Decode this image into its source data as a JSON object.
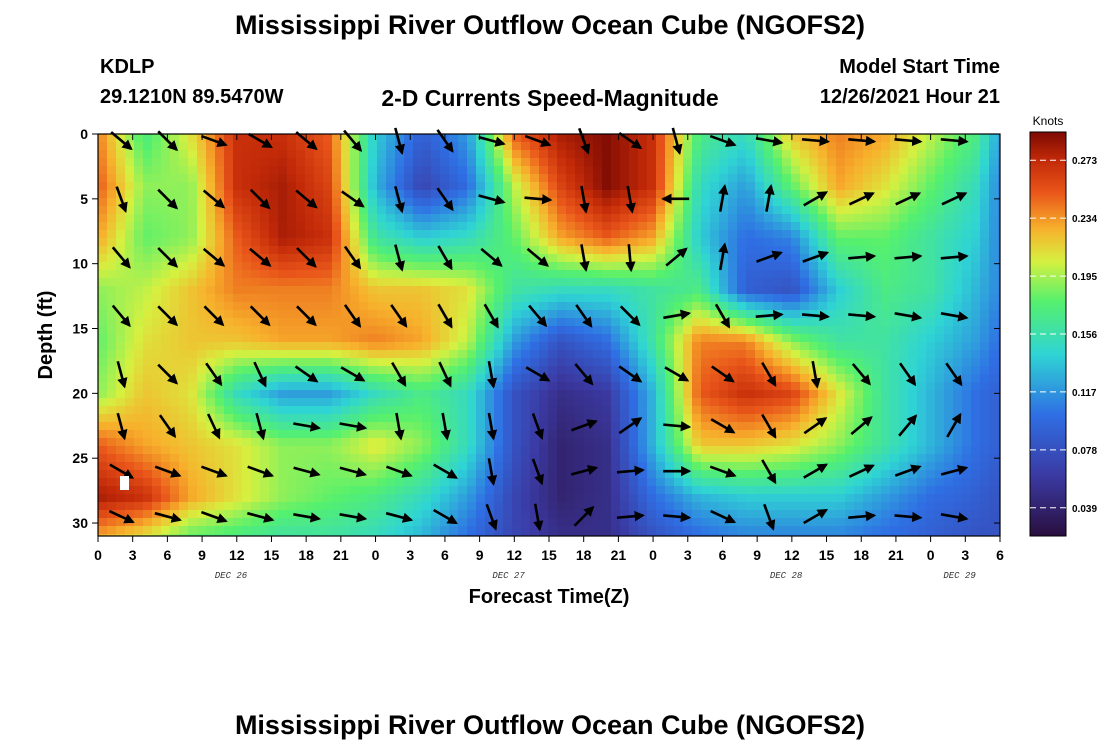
{
  "header": {
    "title": "Mississippi River Outflow Ocean Cube (NGOFS2)",
    "station": "KDLP",
    "coords": "29.1210N  89.5470W",
    "subtitle": "2-D Currents Speed-Magnitude",
    "model_start_label": "Model Start Time",
    "model_start_value": "12/26/2021 Hour 21"
  },
  "footer_title": "Mississippi River Outflow Ocean Cube (NGOFS2)",
  "chart_data": {
    "type": "heatmap",
    "xlabel": "Forecast Time(Z)",
    "ylabel": "Depth (ft)",
    "x_tick_labels": [
      "0",
      "3",
      "6",
      "9",
      "12",
      "15",
      "18",
      "21",
      "0",
      "3",
      "6",
      "9",
      "12",
      "15",
      "18",
      "21",
      "0",
      "3",
      "6",
      "9",
      "12",
      "15",
      "18",
      "21",
      "0",
      "3",
      "6"
    ],
    "x_hours": [
      0,
      3,
      6,
      9,
      12,
      15,
      18,
      21,
      24,
      27,
      30,
      33,
      36,
      39,
      42,
      45,
      48,
      51,
      54,
      57,
      60,
      63,
      66,
      69,
      72,
      75,
      78
    ],
    "xlim_hours": [
      0,
      78
    ],
    "day_labels": [
      {
        "text": "DEC 26",
        "hour": 11.5
      },
      {
        "text": "DEC 27",
        "hour": 35.5
      },
      {
        "text": "DEC 28",
        "hour": 59.5
      },
      {
        "text": "DEC 29",
        "hour": 74.5
      }
    ],
    "y_tick_labels": [
      "0",
      "5",
      "10",
      "15",
      "20",
      "25",
      "30"
    ],
    "y_ticks": [
      0,
      5,
      10,
      15,
      20,
      25,
      30
    ],
    "ylim": [
      0,
      31
    ],
    "colorbar": {
      "unit_label": "Knots",
      "ticks": [
        "0.273",
        "0.234",
        "0.195",
        "0.156",
        "0.117",
        "0.078",
        "0.039"
      ],
      "tick_values": [
        0.273,
        0.234,
        0.195,
        0.156,
        0.117,
        0.078,
        0.039
      ],
      "range": [
        0.02,
        0.292
      ]
    },
    "speed_field": {
      "description_hours": [
        0,
        4,
        8,
        12,
        16,
        20,
        24,
        28,
        32,
        36,
        40,
        44,
        48,
        52,
        56,
        60,
        64,
        68,
        72,
        76,
        78
      ],
      "depths_ft": [
        0,
        4,
        8,
        12,
        16,
        20,
        24,
        28,
        31
      ],
      "values_knots": [
        [
          0.24,
          0.17,
          0.21,
          0.27,
          0.27,
          0.25,
          0.14,
          0.09,
          0.12,
          0.25,
          0.28,
          0.29,
          0.27,
          0.17,
          0.15,
          0.22,
          0.24,
          0.23,
          0.2,
          0.17,
          0.12
        ],
        [
          0.25,
          0.19,
          0.19,
          0.27,
          0.28,
          0.26,
          0.13,
          0.07,
          0.1,
          0.2,
          0.26,
          0.29,
          0.27,
          0.15,
          0.12,
          0.18,
          0.23,
          0.21,
          0.18,
          0.15,
          0.11
        ],
        [
          0.23,
          0.18,
          0.19,
          0.25,
          0.28,
          0.27,
          0.16,
          0.14,
          0.15,
          0.18,
          0.23,
          0.25,
          0.23,
          0.14,
          0.1,
          0.11,
          0.18,
          0.18,
          0.16,
          0.14,
          0.11
        ],
        [
          0.19,
          0.2,
          0.22,
          0.24,
          0.24,
          0.24,
          0.22,
          0.22,
          0.21,
          0.16,
          0.15,
          0.15,
          0.16,
          0.17,
          0.09,
          0.08,
          0.14,
          0.17,
          0.16,
          0.13,
          0.11
        ],
        [
          0.18,
          0.21,
          0.22,
          0.22,
          0.23,
          0.23,
          0.24,
          0.23,
          0.2,
          0.12,
          0.08,
          0.1,
          0.16,
          0.24,
          0.24,
          0.19,
          0.16,
          0.16,
          0.14,
          0.12,
          0.1
        ],
        [
          0.19,
          0.22,
          0.21,
          0.15,
          0.12,
          0.12,
          0.15,
          0.17,
          0.15,
          0.08,
          0.05,
          0.06,
          0.13,
          0.25,
          0.27,
          0.26,
          0.21,
          0.16,
          0.13,
          0.1,
          0.09
        ],
        [
          0.25,
          0.23,
          0.22,
          0.21,
          0.19,
          0.19,
          0.21,
          0.19,
          0.15,
          0.08,
          0.04,
          0.05,
          0.13,
          0.22,
          0.22,
          0.21,
          0.19,
          0.16,
          0.13,
          0.1,
          0.09
        ],
        [
          0.28,
          0.27,
          0.23,
          0.21,
          0.19,
          0.18,
          0.17,
          0.15,
          0.12,
          0.07,
          0.04,
          0.05,
          0.1,
          0.13,
          0.14,
          0.14,
          0.14,
          0.12,
          0.1,
          0.09,
          0.08
        ],
        [
          0.23,
          0.21,
          0.18,
          0.17,
          0.16,
          0.16,
          0.15,
          0.13,
          0.1,
          0.07,
          0.05,
          0.05,
          0.08,
          0.1,
          0.11,
          0.11,
          0.11,
          0.1,
          0.09,
          0.08,
          0.08
        ]
      ]
    },
    "vectors": {
      "hours": [
        2,
        6,
        10,
        14,
        18,
        22,
        26,
        30,
        34,
        38,
        42,
        46,
        50,
        54,
        58,
        62,
        66,
        70,
        74
      ],
      "depths_ft": [
        0.5,
        5,
        9.5,
        14,
        18.5,
        22.5,
        26,
        29.5
      ],
      "directions_deg_math": [
        [
          -40,
          -45,
          -20,
          -30,
          -40,
          -50,
          -75,
          -55,
          -15,
          -20,
          -70,
          -35,
          -75,
          -20,
          -10,
          -5,
          -5,
          -5,
          -5
        ],
        [
          -70,
          -45,
          -40,
          -45,
          -40,
          -35,
          -75,
          -55,
          -15,
          -5,
          -80,
          -80,
          180,
          80,
          80,
          30,
          25,
          25,
          25
        ],
        [
          -50,
          -45,
          -40,
          -40,
          -45,
          -55,
          -75,
          -60,
          -40,
          -40,
          -80,
          -85,
          40,
          80,
          20,
          20,
          5,
          5,
          5
        ],
        [
          -50,
          -45,
          -45,
          -45,
          -45,
          -55,
          -55,
          -60,
          -60,
          -50,
          -55,
          -45,
          10,
          -60,
          5,
          -5,
          -5,
          -10,
          -10
        ],
        [
          -75,
          -45,
          -55,
          -65,
          -35,
          -30,
          -60,
          -65,
          -80,
          -30,
          -50,
          -35,
          -30,
          -35,
          -60,
          -80,
          -50,
          -55,
          -55
        ],
        [
          -75,
          -55,
          -65,
          -75,
          -10,
          -10,
          -80,
          -80,
          -80,
          -70,
          20,
          35,
          -5,
          -30,
          -60,
          35,
          40,
          50,
          60
        ],
        [
          -30,
          -20,
          -20,
          -20,
          -15,
          -15,
          -20,
          -30,
          -80,
          -70,
          15,
          5,
          0,
          -20,
          -60,
          30,
          25,
          20,
          15
        ],
        [
          -25,
          -15,
          -20,
          -15,
          -10,
          -10,
          -15,
          -30,
          -70,
          -80,
          45,
          5,
          -5,
          -25,
          -70,
          30,
          5,
          -5,
          -10
        ]
      ]
    }
  }
}
